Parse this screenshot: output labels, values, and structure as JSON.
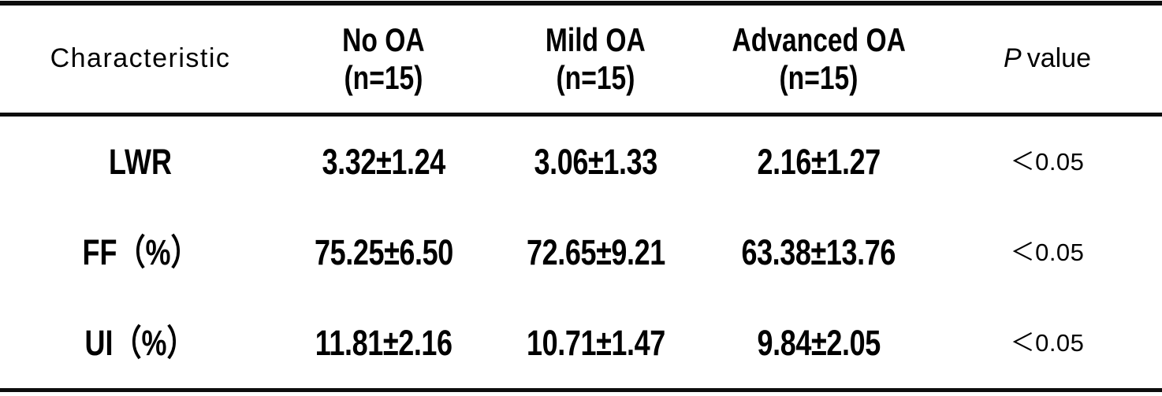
{
  "page": {
    "background": "#ffffff",
    "text_color": "#000000",
    "rule_color": "#0d0d0d"
  },
  "table": {
    "columns": [
      {
        "id": "characteristic",
        "label": "Characteristic"
      },
      {
        "id": "no_oa",
        "label": "No OA",
        "sublabel": "(n=15)"
      },
      {
        "id": "mild_oa",
        "label": "Mild OA",
        "sublabel": "(n=15)"
      },
      {
        "id": "advanced_oa",
        "label": "Advanced OA",
        "sublabel": "(n=15)"
      },
      {
        "id": "p_value",
        "label_italic": "P",
        "label": "value"
      }
    ],
    "rows": [
      {
        "characteristic": "LWR",
        "no_oa": "3.32±1.24",
        "mild_oa": "3.06±1.33",
        "advanced_oa": "2.16±1.27",
        "p_value": "＜0.05"
      },
      {
        "characteristic": "FF（%）",
        "no_oa": "75.25±6.50",
        "mild_oa": "72.65±9.21",
        "advanced_oa": "63.38±13.76",
        "p_value": "＜0.05"
      },
      {
        "characteristic": "UI（%）",
        "no_oa": "11.81±2.16",
        "mild_oa": "10.71±1.47",
        "advanced_oa": "9.84±2.05",
        "p_value": "＜0.05"
      }
    ]
  },
  "chart_data": {
    "type": "table",
    "columns": [
      "Characteristic",
      "No OA (n=15)",
      "Mild OA (n=15)",
      "Advanced OA (n=15)",
      "P value"
    ],
    "rows": [
      [
        "LWR",
        "3.32±1.24",
        "3.06±1.33",
        "2.16±1.27",
        "<0.05"
      ],
      [
        "FF（%）",
        "75.25±6.50",
        "72.65±9.21",
        "63.38±13.76",
        "<0.05"
      ],
      [
        "UI（%）",
        "11.81±2.16",
        "10.71±1.47",
        "9.84±2.05",
        "<0.05"
      ]
    ]
  }
}
